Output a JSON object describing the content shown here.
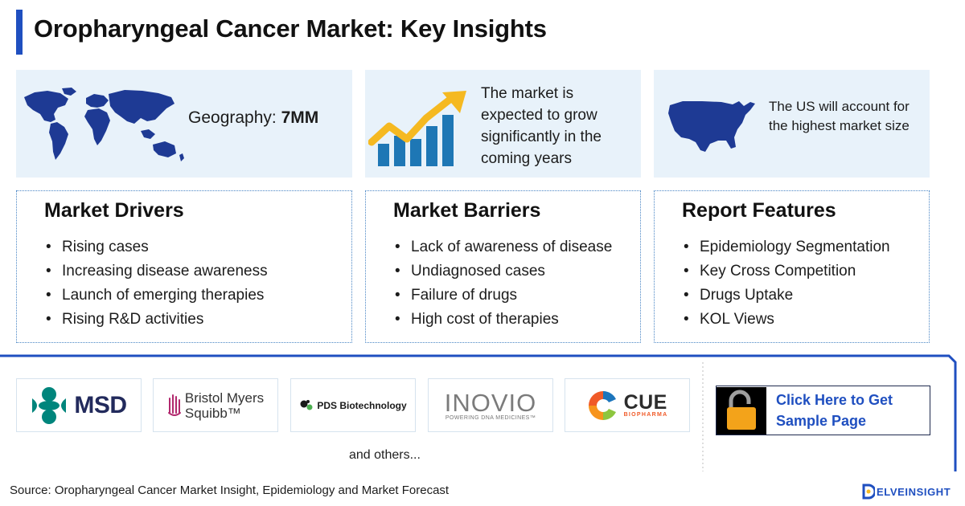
{
  "title": "Oropharyngeal Cancer Market: Key Insights",
  "cards": {
    "geography_label": "Geography:",
    "geography_value": "7MM",
    "growth_text": "The market is expected to grow significantly in the coming years",
    "us_text": "The US will account for the highest market size"
  },
  "drivers": {
    "heading": "Market Drivers",
    "items": [
      "Rising cases",
      "Increasing disease awareness",
      "Launch of emerging therapies",
      "Rising R&D activities"
    ]
  },
  "barriers": {
    "heading": "Market Barriers",
    "items": [
      "Lack of awareness of disease",
      "Undiagnosed cases",
      "Failure of drugs",
      "High cost of therapies"
    ]
  },
  "features": {
    "heading": "Report Features",
    "items": [
      "Epidemiology Segmentation",
      "Key Cross Competition",
      "Drugs Uptake",
      "KOL Views"
    ]
  },
  "companies": {
    "msd": "MSD",
    "bms_line1": "Bristol Myers",
    "bms_line2": "Squibb™",
    "pds": "PDS Biotechnology",
    "inovio": "INOVIO",
    "inovio_tagline": "POWERING DNA MEDICINES™",
    "cue": "CUE",
    "cue_tagline": "BIOPHARMA",
    "others": "and others..."
  },
  "cta": {
    "line1": "Click Here to Get",
    "line2": "Sample Page"
  },
  "source": "Source: Oropharyngeal Cancer Market Insight, Epidemiology and Market Forecast",
  "brand": "ELVEINSIGHT",
  "colors": {
    "accent_blue": "#1f4fc0",
    "card_bg": "#e8f2fa",
    "map_blue": "#1e3a94",
    "arrow_yellow": "#f5b921",
    "bar_blue": "#1e77b5",
    "lock_orange": "#f3a31a"
  }
}
